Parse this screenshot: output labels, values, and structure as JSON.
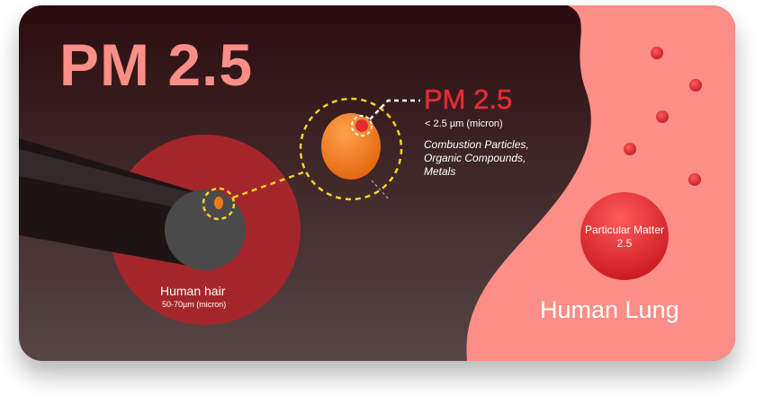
{
  "title": "PM 2.5",
  "particle": {
    "label": "PM 2.5",
    "size": "< 2.5 µm (micron)",
    "description_lines": [
      "Combustion Particles,",
      "Organic Compounds,",
      "Metals"
    ]
  },
  "hair": {
    "label": "Human hair",
    "size": "50-70µm (micron)"
  },
  "lung": {
    "circle_label": "Particular Matter 2.5",
    "label": "Human Lung"
  },
  "colors": {
    "title": "#fb8e86",
    "accent_red": "#e32b36",
    "hair_circle": "#a4262b",
    "lung_area": "#fb8e86",
    "highlight_ring": "#f5d22a",
    "particle": "#f07a1a"
  }
}
